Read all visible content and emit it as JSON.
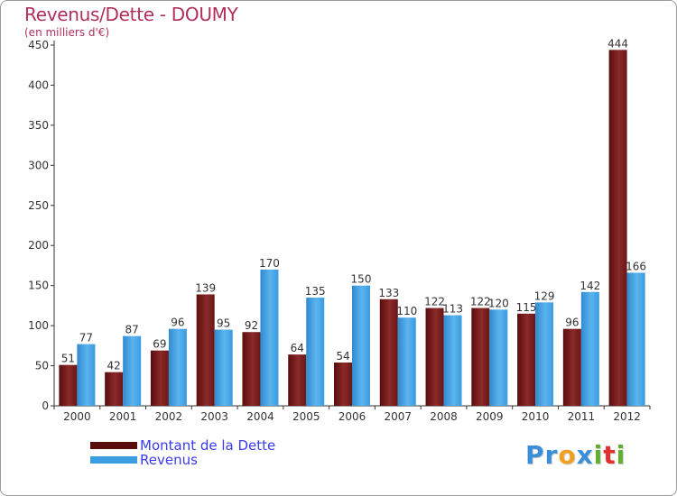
{
  "header": {
    "title": "Revenus/Dette - DOUMY",
    "subtitle": "(en milliers d'€)"
  },
  "chart_data": {
    "type": "bar",
    "categories": [
      "2000",
      "2001",
      "2002",
      "2003",
      "2004",
      "2005",
      "2006",
      "2007",
      "2008",
      "2009",
      "2010",
      "2011",
      "2012"
    ],
    "series": [
      {
        "name": "Montant de la Dette",
        "color": "#7a1a1a",
        "values": [
          51,
          42,
          69,
          139,
          92,
          64,
          54,
          133,
          122,
          122,
          115,
          96,
          444
        ]
      },
      {
        "name": "Revenus",
        "color": "#3b9ee0",
        "values": [
          77,
          87,
          96,
          95,
          170,
          135,
          150,
          110,
          113,
          120,
          129,
          142,
          166
        ]
      }
    ],
    "yticks": [
      0,
      50,
      100,
      150,
      200,
      250,
      300,
      350,
      400,
      450
    ],
    "ylim": [
      0,
      450
    ],
    "grid": false,
    "legend": "bottom-left"
  },
  "legend": {
    "debt_label": "Montant de la Dette",
    "revenue_label": "Revenus"
  },
  "logo": {
    "letters": [
      {
        "char": "P",
        "color": "#3b8fd8"
      },
      {
        "char": "r",
        "color": "#3b8fd8"
      },
      {
        "char": "o",
        "color": "#f0a020"
      },
      {
        "char": "x",
        "color": "#3b8fd8"
      },
      {
        "char": "i",
        "color": "#60b030"
      },
      {
        "char": "t",
        "color": "#e03030"
      },
      {
        "char": "i",
        "color": "#60b030"
      }
    ]
  }
}
